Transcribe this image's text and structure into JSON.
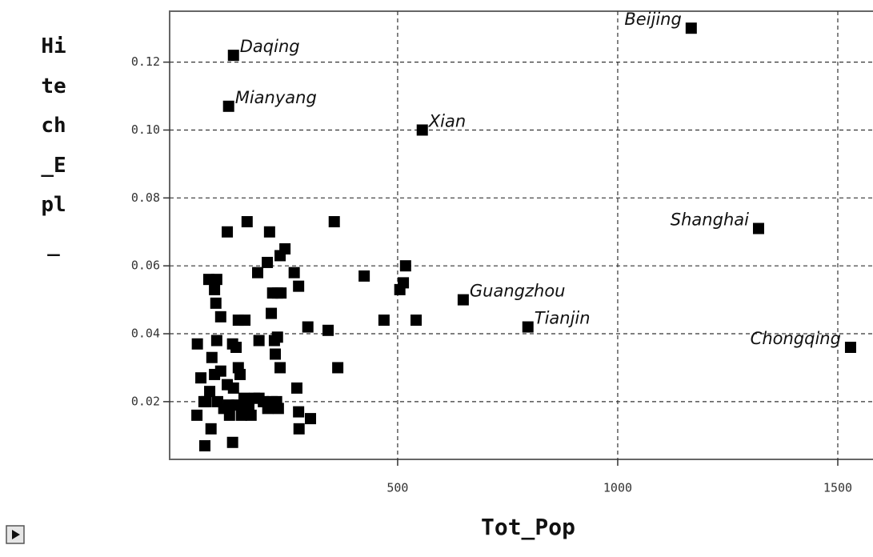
{
  "chart_data": {
    "type": "scatter",
    "x_label": "Tot_Pop",
    "y_label": "Hitech_Epl_",
    "color": "#000000",
    "grid": true,
    "xlim": [
      -18,
      1580
    ],
    "ylim": [
      0.003,
      0.135
    ],
    "xticks": [
      500,
      1000,
      1500
    ],
    "yticks": [
      0.02,
      0.04,
      0.06,
      0.08,
      {
        "value": 0.1,
        "label": "0.10"
      },
      0.12
    ],
    "x": [
      127,
      116,
      556,
      1167,
      1320,
      649,
      796,
      1529,
      113,
      158,
      209,
      356,
      244,
      233,
      204,
      182,
      265,
      275,
      227,
      216,
      235,
      71,
      89,
      84,
      87,
      98,
      138,
      153,
      213,
      227,
      185,
      220,
      222,
      233,
      296,
      342,
      364,
      271,
      229,
      275,
      302,
      276,
      76,
      125,
      62,
      424,
      469,
      505,
      513,
      518,
      542,
      45,
      89,
      125,
      133,
      78,
      84,
      53,
      98,
      138,
      142,
      113,
      127,
      175,
      151,
      185,
      158,
      195,
      215,
      225,
      65,
      91,
      105,
      135,
      167,
      145,
      44,
      118,
      162,
      205,
      60,
      73,
      116
    ],
    "values": [
      0.122,
      0.107,
      0.1,
      0.13,
      0.071,
      0.05,
      0.042,
      0.036,
      0.07,
      0.073,
      0.07,
      0.073,
      0.065,
      0.063,
      0.061,
      0.058,
      0.058,
      0.054,
      0.052,
      0.052,
      0.052,
      0.056,
      0.056,
      0.053,
      0.049,
      0.045,
      0.044,
      0.044,
      0.046,
      0.039,
      0.038,
      0.038,
      0.034,
      0.03,
      0.042,
      0.041,
      0.03,
      0.024,
      0.018,
      0.017,
      0.015,
      0.012,
      0.012,
      0.008,
      0.007,
      0.057,
      0.044,
      0.053,
      0.055,
      0.06,
      0.044,
      0.037,
      0.038,
      0.037,
      0.036,
      0.033,
      0.028,
      0.027,
      0.029,
      0.03,
      0.028,
      0.025,
      0.024,
      0.021,
      0.021,
      0.021,
      0.019,
      0.02,
      0.02,
      0.02,
      0.02,
      0.02,
      0.018,
      0.019,
      0.016,
      0.016,
      0.016,
      0.016,
      0.019,
      0.018,
      0.02,
      0.023,
      0.019
    ],
    "labels": [
      "Daqing",
      "Mianyang",
      "Xian",
      "Beijing",
      "Shanghai",
      "Guangzhou",
      "Tianjin",
      "Chongqing",
      null,
      null,
      null,
      null,
      null,
      null,
      null,
      null,
      null,
      null,
      null,
      null,
      null,
      null,
      null,
      null,
      null,
      null,
      null,
      null,
      null,
      null,
      null,
      null,
      null,
      null,
      null,
      null,
      null,
      null,
      null,
      null,
      null,
      null,
      null,
      null,
      null,
      null,
      null,
      null,
      null,
      null,
      null,
      null,
      null,
      null,
      null,
      null,
      null,
      null,
      null,
      null,
      null,
      null,
      null,
      null,
      null,
      null,
      null,
      null,
      null,
      null,
      null,
      null,
      null,
      null,
      null,
      null,
      null,
      null,
      null,
      null,
      null,
      null,
      null
    ]
  }
}
